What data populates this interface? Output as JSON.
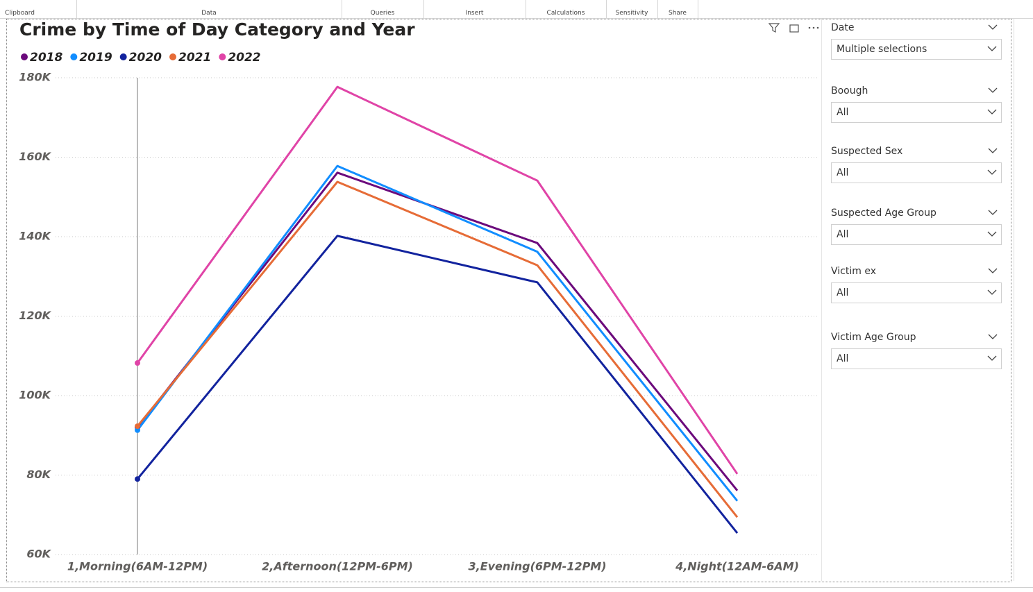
{
  "ribbon": {
    "groups": [
      "Clipboard",
      "Data",
      "Queries",
      "Insert",
      "Calculations",
      "Sensitivity",
      "Share"
    ]
  },
  "chart_data": {
    "type": "line",
    "title": "Crime by Time of Day Category and Year",
    "categories": [
      "1,Morning(6AM-12PM)",
      "2,Afternoon(12PM-6PM)",
      "3,Evening(6PM-12PM)",
      "4,Night(12AM-6AM)"
    ],
    "series": [
      {
        "name": "2018",
        "color": "#6b0a7c",
        "values": [
          92000,
          156100,
          138400,
          76100
        ]
      },
      {
        "name": "2019",
        "color": "#118dff",
        "values": [
          91300,
          157800,
          136200,
          73500
        ]
      },
      {
        "name": "2020",
        "color": "#12239e",
        "values": [
          79000,
          140200,
          128500,
          65400
        ]
      },
      {
        "name": "2021",
        "color": "#e66c37",
        "values": [
          92300,
          153800,
          132800,
          69400
        ]
      },
      {
        "name": "2022",
        "color": "#d64550",
        "values": [
          108200,
          177700,
          154100,
          80300
        ]
      }
    ],
    "ylim": [
      60000,
      180000
    ],
    "yticks": [
      {
        "value": 60000,
        "label": "60K"
      },
      {
        "value": 80000,
        "label": "80K"
      },
      {
        "value": 100000,
        "label": "100K"
      },
      {
        "value": 120000,
        "label": "120K"
      },
      {
        "value": 140000,
        "label": "140K"
      },
      {
        "value": 160000,
        "label": "160K"
      },
      {
        "value": 180000,
        "label": "180K"
      }
    ],
    "grid": true
  },
  "slicers": [
    {
      "label": "Date",
      "value": "Multiple selections"
    },
    {
      "label": "Boough",
      "value": "All"
    },
    {
      "label": "Suspected Sex",
      "value": "All"
    },
    {
      "label": "Suspected Age Group",
      "value": "All"
    },
    {
      "label": "Victim ex",
      "value": "All"
    },
    {
      "label": "Victim Age Group",
      "value": "All"
    }
  ]
}
